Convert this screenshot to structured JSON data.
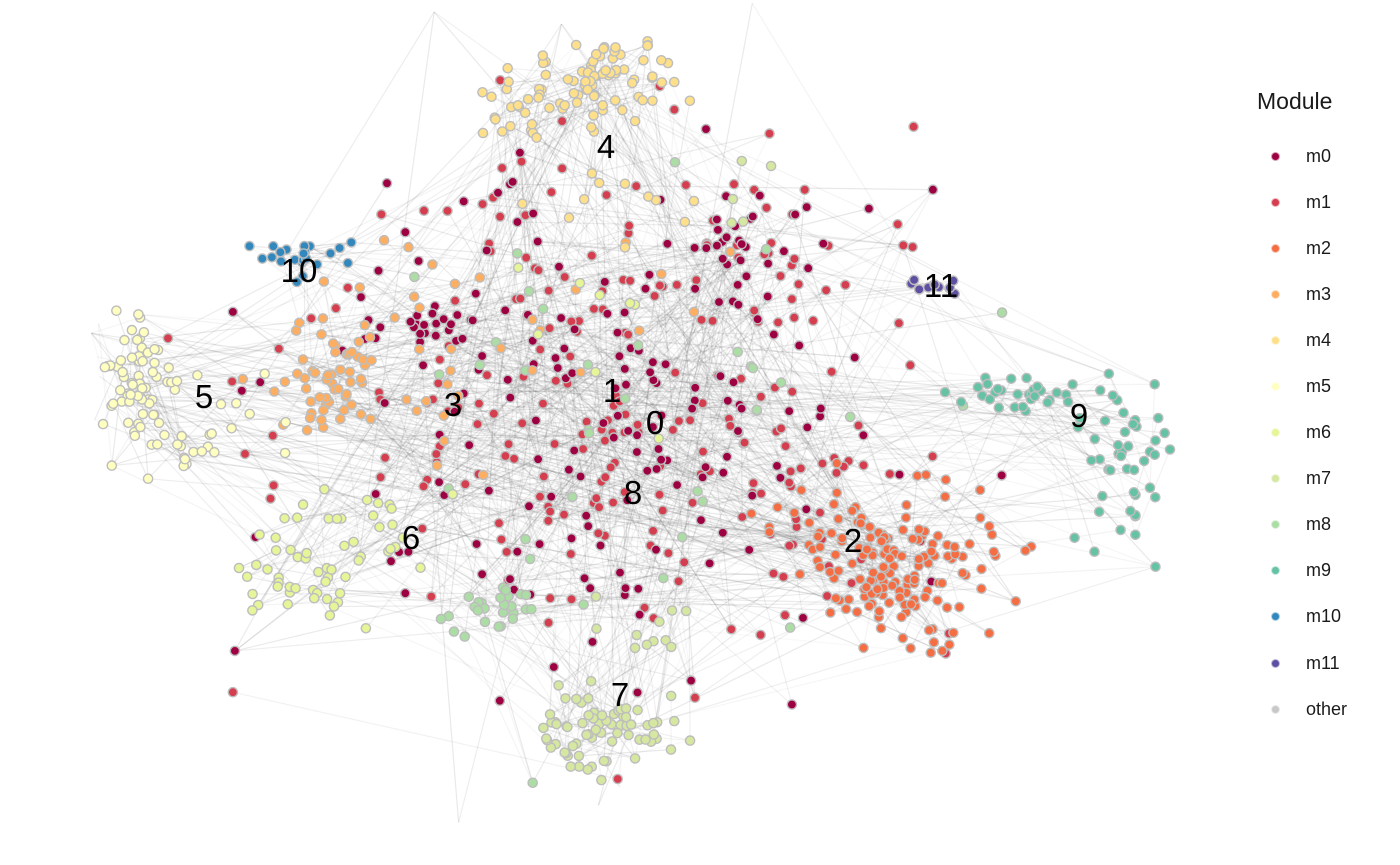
{
  "legend": {
    "title": "Module",
    "items": [
      {
        "label": "m0",
        "color": "#9E0142"
      },
      {
        "label": "m1",
        "color": "#D53E4F"
      },
      {
        "label": "m2",
        "color": "#F46D43"
      },
      {
        "label": "m3",
        "color": "#FDAE61"
      },
      {
        "label": "m4",
        "color": "#FEE08B"
      },
      {
        "label": "m5",
        "color": "#FFFFBF"
      },
      {
        "label": "m6",
        "color": "#E6F598"
      },
      {
        "label": "m7",
        "color": "#D5E7A0"
      },
      {
        "label": "m8",
        "color": "#ABDDA4"
      },
      {
        "label": "m9",
        "color": "#66C2A5"
      },
      {
        "label": "m10",
        "color": "#3288BD"
      },
      {
        "label": "m11",
        "color": "#5E4FA2"
      },
      {
        "label": "other",
        "color": "#C8C8C8"
      }
    ]
  },
  "clusters": [
    {
      "id": "0",
      "module": "m0"
    },
    {
      "id": "1",
      "module": "m1"
    },
    {
      "id": "2",
      "module": "m2"
    },
    {
      "id": "3",
      "module": "m3"
    },
    {
      "id": "4",
      "module": "m4"
    },
    {
      "id": "5",
      "module": "m5"
    },
    {
      "id": "6",
      "module": "m6"
    },
    {
      "id": "7",
      "module": "m7"
    },
    {
      "id": "8",
      "module": "m8"
    },
    {
      "id": "9",
      "module": "m9"
    },
    {
      "id": "10",
      "module": "m10"
    },
    {
      "id": "11",
      "module": "m11"
    }
  ]
}
